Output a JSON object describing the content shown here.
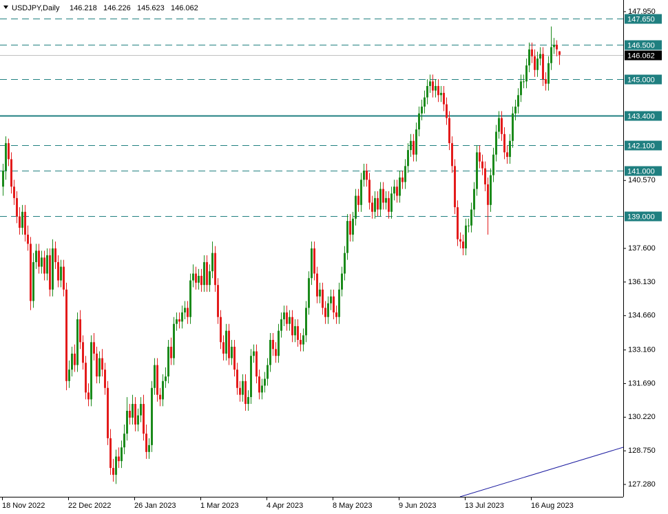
{
  "chart_data": {
    "type": "candlestick",
    "title": "USDJPY,Daily",
    "header_ohlc": [
      146.218,
      146.226,
      145.623,
      146.062
    ],
    "up_color": "#1b8a1b",
    "down_color": "#e31b1b",
    "level_color": "#1f7f80",
    "ylim": [
      126.74,
      148.46
    ],
    "yticks": [
      {
        "value": 147.95,
        "label": "147.950"
      },
      {
        "value": 140.57,
        "label": "140.570"
      },
      {
        "value": 137.6,
        "label": "137.600"
      },
      {
        "value": 136.13,
        "label": "136.130"
      },
      {
        "value": 134.66,
        "label": "134.660"
      },
      {
        "value": 133.16,
        "label": "133.160"
      },
      {
        "value": 131.69,
        "label": "131.690"
      },
      {
        "value": 130.22,
        "label": "130.220"
      },
      {
        "value": 128.75,
        "label": "128.750"
      },
      {
        "value": 127.28,
        "label": "127.280"
      }
    ],
    "levels": [
      {
        "value": 147.65,
        "label": "147.650",
        "style": "dashed"
      },
      {
        "value": 146.5,
        "label": "146.500",
        "style": "dashed"
      },
      {
        "value": 145.0,
        "label": "145.000",
        "style": "dashed"
      },
      {
        "value": 143.4,
        "label": "143.400",
        "style": "solid"
      },
      {
        "value": 142.1,
        "label": "142.100",
        "style": "dashed"
      },
      {
        "value": 141.0,
        "label": "141.000",
        "style": "dashed"
      },
      {
        "value": 139.0,
        "label": "139.000",
        "style": "dashed"
      }
    ],
    "current_price": {
      "value": 146.062,
      "label": "146.062"
    },
    "categories": [
      "18 Nov 2022",
      null,
      null,
      null,
      null,
      null,
      null,
      null,
      null,
      null,
      null,
      null,
      null,
      null,
      null,
      null,
      null,
      null,
      null,
      null,
      null,
      null,
      null,
      null,
      "22 Dec 2022",
      null,
      null,
      null,
      null,
      null,
      null,
      null,
      null,
      null,
      null,
      null,
      null,
      null,
      null,
      null,
      null,
      null,
      null,
      null,
      null,
      null,
      null,
      null,
      "26 Jan 2023",
      null,
      null,
      null,
      null,
      null,
      null,
      null,
      null,
      null,
      null,
      null,
      null,
      null,
      null,
      null,
      null,
      null,
      null,
      null,
      null,
      null,
      null,
      null,
      "1 Mar 2023",
      null,
      null,
      null,
      null,
      null,
      null,
      null,
      null,
      null,
      null,
      null,
      null,
      null,
      null,
      null,
      null,
      null,
      null,
      null,
      null,
      null,
      null,
      null,
      "4 Apr 2023",
      null,
      null,
      null,
      null,
      null,
      null,
      null,
      null,
      null,
      null,
      null,
      null,
      null,
      null,
      null,
      null,
      null,
      null,
      null,
      null,
      null,
      null,
      null,
      "8 May 2023",
      null,
      null,
      null,
      null,
      null,
      null,
      null,
      null,
      null,
      null,
      null,
      null,
      null,
      null,
      null,
      null,
      null,
      null,
      null,
      null,
      null,
      null,
      null,
      "9 Jun 2023",
      null,
      null,
      null,
      null,
      null,
      null,
      null,
      null,
      null,
      null,
      null,
      null,
      null,
      null,
      null,
      null,
      null,
      null,
      null,
      null,
      null,
      null,
      null,
      "13 Jul 2023",
      null,
      null,
      null,
      null,
      null,
      null,
      null,
      null,
      null,
      null,
      null,
      null,
      null,
      null,
      null,
      null,
      null,
      null,
      null,
      null,
      null,
      null,
      null,
      "16 Aug 2023",
      null,
      null,
      null,
      null,
      null,
      null,
      null,
      null,
      null,
      null
    ],
    "open": [
      140.3,
      141.0,
      142.2,
      141.5,
      140.3,
      139.8,
      139.0,
      138.5,
      139.2,
      138.2,
      137.8,
      135.3,
      137.0,
      137.5,
      136.8,
      137.2,
      136.5,
      137.3,
      135.8,
      137.6,
      137.0,
      136.2,
      136.8,
      135.8,
      131.8,
      132.3,
      133.0,
      132.5,
      134.5,
      133.5,
      132.6,
      131.3,
      131.0,
      133.5,
      133.0,
      132.0,
      132.8,
      132.3,
      131.5,
      129.3,
      128.0,
      127.7,
      128.5,
      128.3,
      128.9,
      129.5,
      130.5,
      130.2,
      130.8,
      129.9,
      130.3,
      130.8,
      129.5,
      128.7,
      129.0,
      131.5,
      132.5,
      131.2,
      131.0,
      131.8,
      132.0,
      133.3,
      132.8,
      134.3,
      134.5,
      134.4,
      134.8,
      135.0,
      134.6,
      136.2,
      136.5,
      136.1,
      136.4,
      136.0,
      137.0,
      136.0,
      136.6,
      137.4,
      136.0,
      134.6,
      133.5,
      133.0,
      134.0,
      132.8,
      133.3,
      132.3,
      131.5,
      131.2,
      131.8,
      130.8,
      131.1,
      132.9,
      133.1,
      132.0,
      131.3,
      131.6,
      131.9,
      132.5,
      133.6,
      133.2,
      132.9,
      134.0,
      134.5,
      134.8,
      134.3,
      134.6,
      133.8,
      134.2,
      133.6,
      133.4,
      133.8,
      135.0,
      136.3,
      137.6,
      136.5,
      135.5,
      135.8,
      135.0,
      134.6,
      135.2,
      135.5,
      134.8,
      134.6,
      135.8,
      136.5,
      137.4,
      138.8,
      138.2,
      138.9,
      139.9,
      139.5,
      140.6,
      141.0,
      140.6,
      139.6,
      139.2,
      139.8,
      139.3,
      140.2,
      139.6,
      139.8,
      139.2,
      140.0,
      140.3,
      139.9,
      140.7,
      140.5,
      141.2,
      141.9,
      142.3,
      141.7,
      142.8,
      143.5,
      143.8,
      144.2,
      144.7,
      144.9,
      144.5,
      144.7,
      144.3,
      144.4,
      143.9,
      143.3,
      142.2,
      141.2,
      139.4,
      138.0,
      137.9,
      137.6,
      138.6,
      138.6,
      139.3,
      140.2,
      141.8,
      141.4,
      141.1,
      140.4,
      139.5,
      140.8,
      141.7,
      142.7,
      143.3,
      142.6,
      141.8,
      141.6,
      142.3,
      143.5,
      143.8,
      144.3,
      144.9,
      144.9,
      145.6,
      146.3,
      146.0,
      145.4,
      145.9,
      146.1,
      145.0,
      144.8,
      145.7,
      146.4,
      146.5,
      146.218
    ],
    "high": [
      141.3,
      142.5,
      142.4,
      141.8,
      140.6,
      140.1,
      139.4,
      139.5,
      139.5,
      138.6,
      138.1,
      137.4,
      137.8,
      137.8,
      137.5,
      137.5,
      137.6,
      137.6,
      138.0,
      137.9,
      137.3,
      137.1,
      137.1,
      136.1,
      132.7,
      133.3,
      133.4,
      134.8,
      134.9,
      133.8,
      132.9,
      131.7,
      133.8,
      133.9,
      133.3,
      133.1,
      133.2,
      132.6,
      131.8,
      129.7,
      128.4,
      128.8,
      128.9,
      129.2,
      129.9,
      131.1,
      130.8,
      131.2,
      131.1,
      130.6,
      131.1,
      131.2,
      129.9,
      129.3,
      131.8,
      132.8,
      132.8,
      131.5,
      132.1,
      132.4,
      133.6,
      133.7,
      134.6,
      134.8,
      134.8,
      135.1,
      135.3,
      135.3,
      136.5,
      136.9,
      136.8,
      136.7,
      136.7,
      137.3,
      137.3,
      136.9,
      137.9,
      137.7,
      136.3,
      134.9,
      133.8,
      134.3,
      134.3,
      133.6,
      133.6,
      132.6,
      131.8,
      132.1,
      132.1,
      131.4,
      133.2,
      133.4,
      133.4,
      132.3,
      131.9,
      132.2,
      132.8,
      133.9,
      133.9,
      133.5,
      134.3,
      134.8,
      135.1,
      135.1,
      134.9,
      134.9,
      134.5,
      134.5,
      133.9,
      134.1,
      135.3,
      136.6,
      137.9,
      137.9,
      136.8,
      136.1,
      136.1,
      135.3,
      135.5,
      135.8,
      135.8,
      135.1,
      136.1,
      136.8,
      137.7,
      139.1,
      139.1,
      139.2,
      140.2,
      140.2,
      140.9,
      141.3,
      141.3,
      140.9,
      139.9,
      140.1,
      140.1,
      140.5,
      140.5,
      140.1,
      140.1,
      140.3,
      140.6,
      140.6,
      141.0,
      141.0,
      141.5,
      142.2,
      142.6,
      142.6,
      143.1,
      143.8,
      144.1,
      144.5,
      145.0,
      145.2,
      145.2,
      145.0,
      145.0,
      144.7,
      144.7,
      144.2,
      143.6,
      142.5,
      141.5,
      139.7,
      138.3,
      138.2,
      138.9,
      138.9,
      139.6,
      140.5,
      142.1,
      142.1,
      141.7,
      141.4,
      140.7,
      141.1,
      142.0,
      143.0,
      143.6,
      143.6,
      142.9,
      142.1,
      142.6,
      143.8,
      144.1,
      144.6,
      145.2,
      145.2,
      145.9,
      146.6,
      146.6,
      146.3,
      146.2,
      146.4,
      146.4,
      145.3,
      146.0,
      147.3,
      146.8,
      146.7,
      146.226
    ],
    "low": [
      139.9,
      140.6,
      141.2,
      140.0,
      139.5,
      138.7,
      138.2,
      138.2,
      137.9,
      137.5,
      134.9,
      135.0,
      136.7,
      136.5,
      136.5,
      136.2,
      136.2,
      135.5,
      135.5,
      136.7,
      135.9,
      135.9,
      135.5,
      131.4,
      131.5,
      132.0,
      132.2,
      132.2,
      133.2,
      132.3,
      131.0,
      130.7,
      130.7,
      132.7,
      131.7,
      131.7,
      132.0,
      131.2,
      129.0,
      127.7,
      127.4,
      127.3,
      128.0,
      128.0,
      128.6,
      129.2,
      129.9,
      129.9,
      129.6,
      129.6,
      130.0,
      129.2,
      128.4,
      128.4,
      128.7,
      131.2,
      130.9,
      130.7,
      130.7,
      131.5,
      131.7,
      132.5,
      132.5,
      134.0,
      134.1,
      134.1,
      134.5,
      134.3,
      134.3,
      135.9,
      135.8,
      135.8,
      135.7,
      135.7,
      135.7,
      135.7,
      136.3,
      135.7,
      134.3,
      133.2,
      132.7,
      132.7,
      132.5,
      132.5,
      132.0,
      131.2,
      130.9,
      130.9,
      130.5,
      130.5,
      130.8,
      132.6,
      131.7,
      131.0,
      131.0,
      131.3,
      131.6,
      132.2,
      132.9,
      132.6,
      132.6,
      133.7,
      134.2,
      134.0,
      134.0,
      133.5,
      133.5,
      133.3,
      133.1,
      133.1,
      133.5,
      134.7,
      136.0,
      136.2,
      135.2,
      135.2,
      134.7,
      134.3,
      134.3,
      134.9,
      134.5,
      134.3,
      134.3,
      135.5,
      136.2,
      137.1,
      137.9,
      137.9,
      138.6,
      139.2,
      139.2,
      140.3,
      140.3,
      139.3,
      138.9,
      138.9,
      139.0,
      139.0,
      139.3,
      139.3,
      138.9,
      138.9,
      139.7,
      139.6,
      139.6,
      140.2,
      140.2,
      140.9,
      141.6,
      141.4,
      141.4,
      142.5,
      143.2,
      143.5,
      143.9,
      144.4,
      144.2,
      144.2,
      144.0,
      144.0,
      143.6,
      143.0,
      141.9,
      140.9,
      139.1,
      137.7,
      137.6,
      137.3,
      137.3,
      138.3,
      138.3,
      139.0,
      139.9,
      141.1,
      140.8,
      140.1,
      138.2,
      139.2,
      140.5,
      141.4,
      142.4,
      142.3,
      141.5,
      141.3,
      141.3,
      142.0,
      143.2,
      143.5,
      144.0,
      144.6,
      144.6,
      145.3,
      145.7,
      145.1,
      145.1,
      145.6,
      144.7,
      144.5,
      144.5,
      145.4,
      146.1,
      146.0,
      145.623
    ],
    "close": [
      141.0,
      142.2,
      141.5,
      140.3,
      139.8,
      139.0,
      138.5,
      139.2,
      138.2,
      137.8,
      135.3,
      137.0,
      137.5,
      136.8,
      137.2,
      136.5,
      137.3,
      135.8,
      137.6,
      137.0,
      136.2,
      136.8,
      135.8,
      131.8,
      132.3,
      133.0,
      132.5,
      134.5,
      133.5,
      132.6,
      131.3,
      131.0,
      133.5,
      133.0,
      132.0,
      132.8,
      132.3,
      131.5,
      129.3,
      128.0,
      127.7,
      128.5,
      128.3,
      128.9,
      129.5,
      130.5,
      130.2,
      130.8,
      129.9,
      130.3,
      130.8,
      129.5,
      128.7,
      129.0,
      131.5,
      132.5,
      131.2,
      131.0,
      131.8,
      132.0,
      133.3,
      132.8,
      134.3,
      134.5,
      134.4,
      134.8,
      135.0,
      134.6,
      136.2,
      136.5,
      136.1,
      136.4,
      136.0,
      137.0,
      136.0,
      136.6,
      137.4,
      136.0,
      134.6,
      133.5,
      133.0,
      134.0,
      132.8,
      133.3,
      132.3,
      131.5,
      131.2,
      131.8,
      130.8,
      131.1,
      132.9,
      133.1,
      132.0,
      131.3,
      131.6,
      131.9,
      132.5,
      133.6,
      133.2,
      132.9,
      134.0,
      134.5,
      134.8,
      134.3,
      134.6,
      133.8,
      134.2,
      133.6,
      133.4,
      133.8,
      135.0,
      136.3,
      137.6,
      136.5,
      135.5,
      135.8,
      135.0,
      134.6,
      135.2,
      135.5,
      134.8,
      134.6,
      135.8,
      136.5,
      137.4,
      138.8,
      138.2,
      138.9,
      139.9,
      139.5,
      140.6,
      141.0,
      140.6,
      139.6,
      139.2,
      139.8,
      139.3,
      140.2,
      139.6,
      139.8,
      139.2,
      140.0,
      140.3,
      139.9,
      140.7,
      140.5,
      141.2,
      141.9,
      142.3,
      141.7,
      142.8,
      143.5,
      143.8,
      144.2,
      144.7,
      144.9,
      144.5,
      144.7,
      144.3,
      144.4,
      143.9,
      143.3,
      142.2,
      141.2,
      139.4,
      138.0,
      137.9,
      137.6,
      138.6,
      138.6,
      139.3,
      140.2,
      141.8,
      141.4,
      141.1,
      140.4,
      139.5,
      140.8,
      141.7,
      142.7,
      143.3,
      142.6,
      141.8,
      141.6,
      142.3,
      143.5,
      143.8,
      144.3,
      144.9,
      144.9,
      145.6,
      146.3,
      146.0,
      145.4,
      145.9,
      146.1,
      145.0,
      144.8,
      145.7,
      146.4,
      146.5,
      146.3,
      146.062
    ]
  }
}
